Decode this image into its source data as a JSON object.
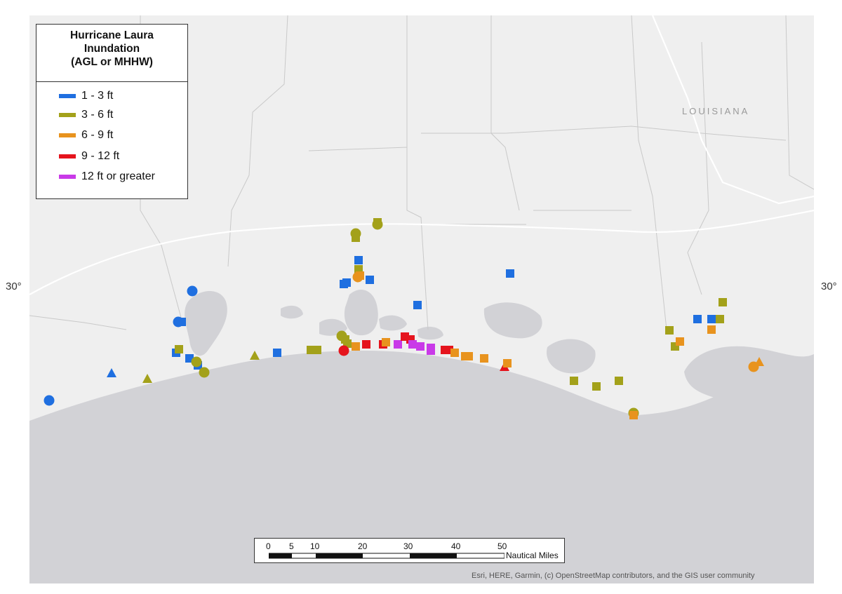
{
  "legend": {
    "title_line1": "Hurricane Laura",
    "title_line2": "Inundation",
    "title_line3": "(AGL or MHHW)",
    "items": [
      {
        "label": "1 - 3 ft",
        "color": "#1f6fe0"
      },
      {
        "label": "3 - 6 ft",
        "color": "#a3a11a"
      },
      {
        "label": "6 - 9 ft",
        "color": "#e8931e"
      },
      {
        "label": "9 - 12 ft",
        "color": "#e5141d"
      },
      {
        "label": "12 ft or greater",
        "color": "#c93ae8"
      }
    ]
  },
  "map": {
    "state_label": "LOUISIANA",
    "lat_label_left": "30°",
    "lat_label_right": "30°",
    "land_color": "#efefef",
    "water_color": "#d2d2d6",
    "attribution": "Esri, HERE, Garmin, (c) OpenStreetMap contributors, and the GIS user community"
  },
  "scale_bar": {
    "ticks": [
      "0",
      "5",
      "10",
      "20",
      "30",
      "40",
      "50"
    ],
    "unit": "Nautical Miles"
  }
}
